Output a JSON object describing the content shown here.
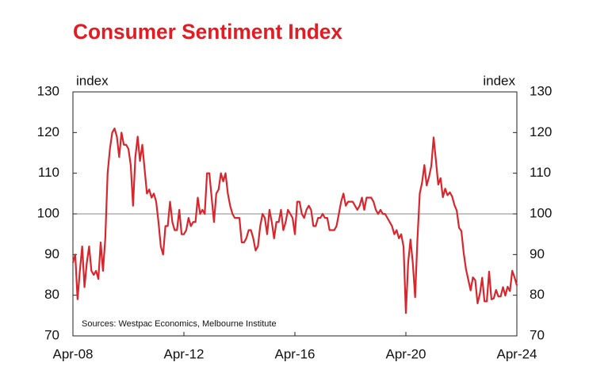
{
  "chart_data": {
    "type": "line",
    "title": "Consumer Sentiment Index",
    "y_label": "index",
    "y2_label": "index",
    "note": "Sources: Westpac Economics, Melbourne Institute",
    "categories": [
      "Apr-08",
      null,
      null,
      null,
      null,
      null,
      null,
      null,
      null,
      null,
      null,
      null,
      null,
      null,
      null,
      null,
      null,
      null,
      null,
      null,
      null,
      null,
      null,
      null,
      null,
      null,
      null,
      null,
      null,
      null,
      null,
      null,
      null,
      null,
      null,
      null,
      null,
      null,
      null,
      null,
      null,
      null,
      null,
      null,
      null,
      null,
      null,
      null,
      "Apr-12",
      null,
      null,
      null,
      null,
      null,
      null,
      null,
      null,
      null,
      null,
      null,
      null,
      null,
      null,
      null,
      null,
      null,
      null,
      null,
      null,
      null,
      null,
      null,
      null,
      null,
      null,
      null,
      null,
      null,
      null,
      null,
      null,
      null,
      null,
      null,
      null,
      null,
      null,
      null,
      null,
      null,
      null,
      null,
      null,
      null,
      null,
      null,
      "Apr-16",
      null,
      null,
      null,
      null,
      null,
      null,
      null,
      null,
      null,
      null,
      null,
      null,
      null,
      null,
      null,
      null,
      null,
      null,
      null,
      null,
      null,
      null,
      null,
      null,
      null,
      null,
      null,
      null,
      null,
      null,
      null,
      null,
      null,
      null,
      null,
      null,
      null,
      null,
      null,
      null,
      null,
      null,
      null,
      null,
      null,
      null,
      null,
      "Apr-20",
      null,
      null,
      null,
      null,
      null,
      null,
      null,
      null,
      null,
      null,
      null,
      null,
      null,
      null,
      null,
      null,
      null,
      null,
      null,
      null,
      null,
      null,
      null,
      null,
      null,
      null,
      null,
      null,
      null,
      null,
      null,
      null,
      null,
      null,
      null,
      null,
      null,
      null,
      null,
      null,
      null,
      null,
      null,
      null,
      null,
      null,
      null,
      "Apr-24"
    ],
    "series": [
      {
        "name": "Consumer Sentiment Index",
        "color": "#d7262e",
        "values": [
          88,
          90,
          79,
          86,
          92,
          82,
          88,
          92,
          86,
          85,
          86,
          84,
          93,
          86,
          94,
          110,
          116,
          120,
          121,
          119,
          114,
          120,
          117,
          117,
          116,
          112,
          102,
          114,
          119,
          113,
          117,
          111,
          105,
          106,
          104,
          105,
          103,
          98,
          92,
          90,
          97,
          97,
          103,
          98,
          96,
          96,
          101,
          95,
          95,
          96,
          99,
          97,
          98,
          98,
          104,
          100,
          101,
          100,
          110,
          110,
          104,
          98,
          105,
          106,
          110,
          108,
          110,
          105,
          102,
          100,
          99,
          99,
          99,
          93,
          93,
          94,
          96,
          96,
          94,
          91,
          92,
          97,
          100,
          99,
          95,
          101,
          98,
          94,
          98,
          98,
          101,
          96,
          98,
          101,
          100,
          99,
          95,
          103,
          103,
          100,
          99,
          101,
          102,
          101,
          97,
          97,
          99,
          99,
          100,
          99,
          99,
          96,
          96,
          96,
          97,
          100,
          103,
          105,
          102,
          103,
          103,
          103,
          102,
          101,
          102,
          104,
          101,
          104,
          104,
          104,
          103,
          101,
          100,
          101,
          100,
          100,
          99,
          98,
          97,
          95,
          96,
          94,
          95,
          91.9,
          75.6,
          88.1,
          93.7,
          87.9,
          79.5,
          93.8,
          105,
          107.7,
          112,
          107,
          109.1,
          111.8,
          118.8,
          113.1,
          107.2,
          108.8,
          104.1,
          106.2,
          104.6,
          105.3,
          104.3,
          102.2,
          100.8,
          96.6,
          95.8,
          90.4,
          86.4,
          83.8,
          81.2,
          84.4,
          83.7,
          78,
          80.3,
          84.3,
          78.5,
          78.5,
          85.8,
          79,
          79.2,
          81.3,
          79.7,
          79.7,
          82,
          79.9,
          82.1,
          81,
          86,
          84.4,
          82.4
        ]
      }
    ],
    "ylim": [
      70,
      130
    ],
    "yticks": [
      70,
      80,
      90,
      100,
      110,
      120,
      130
    ],
    "y2lim": [
      70,
      130
    ],
    "y2ticks": [
      70,
      80,
      90,
      100,
      110,
      120,
      130
    ],
    "hline": 100
  }
}
